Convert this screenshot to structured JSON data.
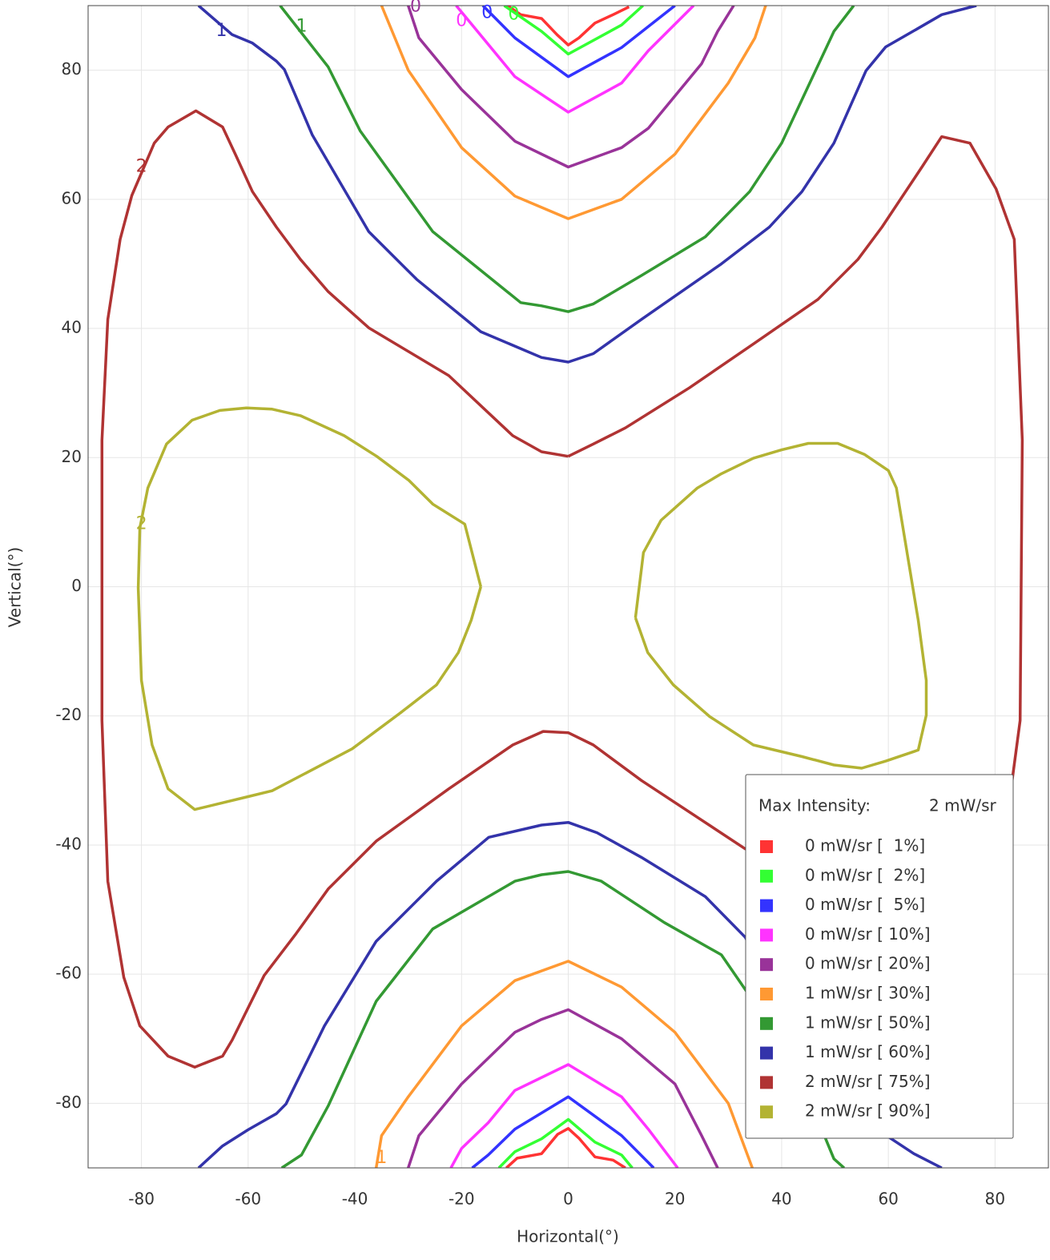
{
  "chart_data": {
    "type": "contour",
    "x_label": "Horizontal(°)",
    "y_label": "Vertical(°)",
    "xlim": [
      -90,
      90
    ],
    "ylim": [
      -90,
      90
    ],
    "xticks": [
      -80,
      -60,
      -40,
      -20,
      0,
      20,
      40,
      60,
      80
    ],
    "yticks": [
      -80,
      -60,
      -40,
      -20,
      0,
      20,
      40,
      60,
      80
    ],
    "grid": true,
    "legend": {
      "title": "Max Intensity:",
      "max_value": "2 mW/sr",
      "position": "lower right"
    },
    "series": [
      {
        "name": "0 mW/sr [  1%]",
        "color": "#ff3333",
        "x": [
          -11.4,
          -8.9,
          -5,
          -2.1,
          0,
          2,
          5,
          8.4,
          11.4,
          null,
          -11.6,
          -9.6,
          -5,
          -2,
          0,
          2,
          5,
          8.4,
          10.7
        ],
        "y": [
          90,
          88.6,
          88,
          85.5,
          83.9,
          85,
          87.3,
          88.6,
          89.8,
          null,
          -90,
          -88.5,
          -87.8,
          -84.8,
          -83.9,
          -85.4,
          -88.3,
          -88.8,
          -90
        ]
      },
      {
        "name": "0 mW/sr [  2%]",
        "color": "#33ff33",
        "x": [
          -12,
          -5,
          0,
          10,
          14,
          null,
          -13,
          -10,
          -5,
          0,
          5,
          10,
          12
        ],
        "y": [
          90,
          86,
          82.5,
          87,
          90,
          null,
          -90,
          -87.5,
          -85.5,
          -82.5,
          -86,
          -88,
          -90
        ]
      },
      {
        "name": "0 mW/sr [  5%]",
        "color": "#3333ff",
        "x": [
          -16,
          -10,
          0,
          10,
          20,
          null,
          -18,
          -15,
          -10,
          0,
          10,
          16
        ],
        "y": [
          90,
          85,
          79,
          83.5,
          90,
          null,
          -90,
          -88,
          -84,
          -79,
          -85,
          -90
        ]
      },
      {
        "name": "0 mW/sr [ 10%]",
        "color": "#ff33ff",
        "x": [
          -21,
          -15,
          -10,
          0,
          10,
          15,
          23.5,
          null,
          -22,
          -20,
          -15,
          -10,
          0,
          10,
          15,
          20.5
        ],
        "y": [
          90,
          84,
          79,
          73.5,
          78,
          83,
          90,
          null,
          -90,
          -87,
          -83,
          -78,
          -74,
          -79,
          -84,
          -90
        ]
      },
      {
        "name": "0 mW/sr [ 20%]",
        "color": "#993399",
        "x": [
          -30,
          -28,
          -20,
          -10,
          0,
          10,
          15,
          25,
          28,
          31,
          null,
          -30,
          -28,
          -20,
          -10,
          -5,
          0,
          10,
          20,
          25,
          28
        ],
        "y": [
          90,
          85,
          77,
          69,
          65,
          68,
          71,
          81,
          86,
          90,
          null,
          -90,
          -85,
          -77,
          -69,
          -67,
          -65.5,
          -70,
          -77,
          -85,
          -90
        ]
      },
      {
        "name": "1 mW/sr [ 30%]",
        "color": "#ff9933",
        "x": [
          -35,
          -30,
          -20,
          -10,
          0,
          10,
          20,
          30,
          35,
          37,
          null,
          -36,
          -35,
          -30,
          -20,
          -10,
          0,
          10,
          20,
          30,
          34.5
        ],
        "y": [
          90,
          80,
          68,
          60.5,
          57,
          60,
          67,
          78,
          85,
          90,
          null,
          -90,
          -85,
          -79,
          -68,
          -61,
          -58,
          -62,
          -69,
          -80,
          -90
        ]
      },
      {
        "name": "1 mW/sr [ 50%]",
        "color": "#339933",
        "x": [
          -54,
          -45,
          -39,
          -25.4,
          -8.9,
          -5,
          0,
          4.7,
          13.7,
          25.7,
          34,
          40,
          49.8,
          53.5,
          null,
          -53.7,
          -50,
          -45,
          -36,
          -25.4,
          -10,
          -5,
          0,
          6.2,
          18,
          28.7,
          34.7,
          43.8,
          49.8,
          51.7
        ],
        "y": [
          90,
          80.5,
          70.6,
          55,
          44,
          43.5,
          42.6,
          43.8,
          48.2,
          54.2,
          61.2,
          68.7,
          86,
          90,
          null,
          -90,
          -88,
          -80.4,
          -64.2,
          -53,
          -45.6,
          -44.6,
          -44.1,
          -45.6,
          -52,
          -57,
          -64.2,
          -76.6,
          -88.6,
          -90
        ]
      },
      {
        "name": "1 mW/sr [ 60%]",
        "color": "#3333aa",
        "x": [
          -69.3,
          -63,
          -59.2,
          -54.7,
          -53.2,
          -48,
          -37.4,
          -28.4,
          -16.4,
          -5,
          0,
          4.7,
          13.7,
          28.7,
          37.7,
          43.8,
          49.8,
          55.8,
          59.5,
          64.8,
          70,
          76.5,
          null,
          -69.3,
          -64.8,
          -60,
          -54.7,
          -52.9,
          -45.7,
          -36,
          -24.7,
          -14.9,
          -5,
          0,
          5.4,
          13.7,
          25.7,
          33.2,
          42.3,
          55.8,
          64.8,
          70
        ],
        "y": [
          90,
          85.5,
          84.2,
          81.4,
          80.1,
          70,
          55,
          47.6,
          39.5,
          35.5,
          34.8,
          36.1,
          41.4,
          50,
          55.7,
          61.2,
          68.7,
          79.9,
          83.6,
          86.1,
          88.6,
          90,
          null,
          -90,
          -86.6,
          -84.1,
          -81.6,
          -80.1,
          -68,
          -54.9,
          -45.6,
          -38.8,
          -36.9,
          -36.5,
          -38.1,
          -41.9,
          -48,
          -54.3,
          -69,
          -82.9,
          -87.8,
          -90
        ]
      },
      {
        "name": "2 mW/sr [ 75%]",
        "color": "#b03333",
        "x": [
          0,
          -5,
          -10.4,
          -22.4,
          -37.4,
          -45,
          -50.2,
          -54.7,
          -59.2,
          -62.3,
          -64.8,
          -69.8,
          -75,
          -77.6,
          -81.8,
          -84,
          -86.3,
          -87.4,
          -87.4,
          -86.3,
          -83.3,
          -80.3,
          -75,
          -70,
          -64.8,
          -63,
          -57,
          -51,
          -45,
          -36,
          -22.4,
          -10.4,
          -4.7,
          0,
          4.7,
          13.7,
          24.2,
          33.2,
          43.8,
          82.9,
          84.7,
          85.1,
          83.6,
          80.2,
          75.3,
          70,
          66.3,
          58.8,
          54.3,
          46.8,
          34.7,
          22.7,
          10.7,
          4.7,
          0
        ],
        "y": [
          20.2,
          20.9,
          23.4,
          32.7,
          40.1,
          45.7,
          50.7,
          55.7,
          61.2,
          66.8,
          71.2,
          73.7,
          71.2,
          68.7,
          60.6,
          53.8,
          41.4,
          22.7,
          -20.7,
          -45.6,
          -60.5,
          -68,
          -72.7,
          -74.4,
          -72.7,
          -70.2,
          -60.2,
          -53.7,
          -46.8,
          -39.4,
          -31.3,
          -24.5,
          -22.4,
          -22.6,
          -24.5,
          -30,
          -35.7,
          -40.6,
          -41.9,
          -31.9,
          -20.7,
          22.7,
          53.8,
          61.6,
          68.7,
          69.7,
          65,
          55.7,
          50.7,
          44.5,
          37.6,
          30.8,
          24.6,
          22.1,
          20.2
        ]
      },
      {
        "name": "2 mW/sr [ 90%]",
        "color": "#b3b333",
        "x": [
          -16.4,
          -19.4,
          -25.4,
          -29.9,
          -35.9,
          -42,
          -50.2,
          -55.5,
          -60.3,
          -65.3,
          -70.5,
          -75.3,
          -78.8,
          -80.3,
          -80.6,
          -80,
          -78,
          -75,
          -70,
          -60,
          -55.5,
          -40.5,
          -31.4,
          -24.7,
          -20.6,
          -18.2,
          -16.4,
          null,
          12.6,
          14.1,
          17.4,
          24.2,
          28.7,
          34.7,
          40,
          45,
          50.5,
          55.5,
          60,
          61.5,
          65.6,
          67.1,
          67.1,
          65.6,
          59.5,
          55,
          49.8,
          43.8,
          34.7,
          26.5,
          19.7,
          14.9,
          12.6
        ],
        "y": [
          0,
          9.7,
          12.8,
          16.5,
          20.2,
          23.4,
          26.5,
          27.5,
          27.7,
          27.3,
          25.8,
          22.1,
          15.3,
          9.1,
          -0.2,
          -14.5,
          -24.5,
          -31.3,
          -34.5,
          -32.5,
          -31.6,
          -25.1,
          -19.5,
          -15.2,
          -10.2,
          -5.2,
          0,
          null,
          -4.8,
          5.3,
          10.3,
          15.3,
          17.5,
          19.9,
          21.2,
          22.2,
          22.2,
          20.5,
          18,
          15.3,
          -5.2,
          -14.5,
          -19.9,
          -25.3,
          -27,
          -28.1,
          -27.6,
          -26.3,
          -24.5,
          -20.1,
          -15.2,
          -10.2,
          -4.8
        ]
      }
    ],
    "annotations": [
      {
        "text": "1",
        "x": -65,
        "y": 86,
        "color": "#3333aa"
      },
      {
        "text": "1",
        "x": -50,
        "y": 86.7,
        "color": "#339933"
      },
      {
        "text": "2",
        "x": -80,
        "y": 65,
        "color": "#b03333"
      },
      {
        "text": "2",
        "x": -80,
        "y": 9.7,
        "color": "#b3b333"
      },
      {
        "text": "0",
        "x": -28.6,
        "y": 89.8,
        "color": "#993399"
      },
      {
        "text": "0",
        "x": -20,
        "y": 87.6,
        "color": "#ff33ff"
      },
      {
        "text": "0",
        "x": -15.2,
        "y": 88.8,
        "color": "#3333ff"
      },
      {
        "text": "0",
        "x": -10.2,
        "y": 88.6,
        "color": "#33ff33"
      },
      {
        "text": "1",
        "x": -35,
        "y": -88.5,
        "color": "#ff9933"
      }
    ]
  }
}
